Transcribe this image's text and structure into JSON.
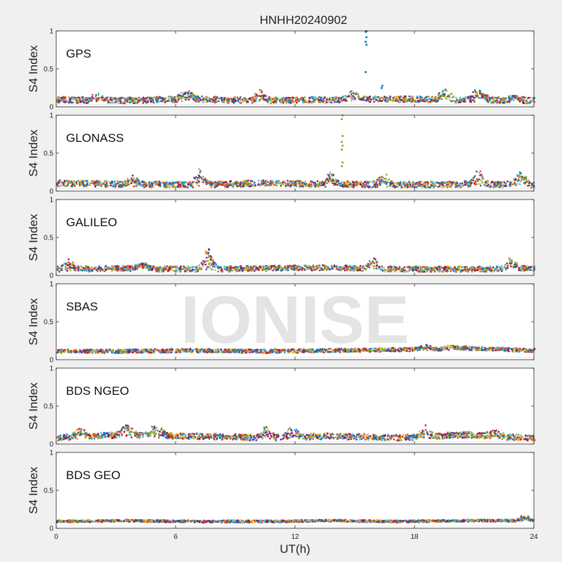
{
  "watermark": "IONISE",
  "chart_data": {
    "type": "scatter",
    "title": "HNHH20240902",
    "xlabel": "UT(h)",
    "ylabel": "S4 Index",
    "xlim": [
      0,
      24
    ],
    "ylim": [
      0,
      1
    ],
    "xticks": [
      0,
      6,
      12,
      18,
      24
    ],
    "xtick_labels": [
      "0",
      "6",
      "12",
      "18",
      "24"
    ],
    "yticks": [
      0,
      0.5,
      1
    ],
    "ytick_labels": [
      "0",
      "0.5",
      "1"
    ],
    "grid": false,
    "colors": [
      "#0072BD",
      "#D95319",
      "#EDB120",
      "#7E2F8E",
      "#77AC30",
      "#4DBEEE",
      "#A2142F"
    ],
    "panels": [
      {
        "name": "GPS",
        "baseline": [
          0.09,
          0.08,
          0.1,
          0.08,
          0.09,
          0.1,
          0.09,
          0.08
        ],
        "noise": 0.04,
        "bumps": [
          [
            2.0,
            0.16
          ],
          [
            6.5,
            0.22
          ],
          [
            10.2,
            0.2
          ],
          [
            14.8,
            0.2
          ],
          [
            19.5,
            0.21
          ],
          [
            21.2,
            0.28
          ],
          [
            23.0,
            0.16
          ]
        ],
        "spikes": [
          {
            "x": 15.5,
            "values": [
              0.46,
              0.82,
              0.86,
              0.92,
              0.99,
              1.0
            ],
            "color": "#0072BD"
          },
          {
            "x": 16.3,
            "values": [
              0.25,
              0.28
            ],
            "color": "#0072BD"
          }
        ]
      },
      {
        "name": "GLONASS",
        "baseline": [
          0.1,
          0.09,
          0.08,
          0.1,
          0.09,
          0.08,
          0.09,
          0.08
        ],
        "noise": 0.04,
        "bumps": [
          [
            3.8,
            0.18
          ],
          [
            7.2,
            0.29
          ],
          [
            13.8,
            0.24
          ],
          [
            16.4,
            0.22
          ],
          [
            21.2,
            0.27
          ],
          [
            23.3,
            0.26
          ]
        ],
        "spikes": [
          {
            "x": 14.3,
            "values": [
              0.33,
              0.38,
              0.55,
              0.6,
              0.65,
              0.73,
              0.95,
              1.0
            ],
            "color": "#77AC30"
          }
        ]
      },
      {
        "name": "GALILEO",
        "baseline": [
          0.08,
          0.09,
          0.08,
          0.09,
          0.1,
          0.08,
          0.08,
          0.09
        ],
        "noise": 0.035,
        "bumps": [
          [
            0.6,
            0.2
          ],
          [
            4.3,
            0.16
          ],
          [
            7.6,
            0.34
          ],
          [
            15.9,
            0.22
          ],
          [
            22.8,
            0.22
          ]
        ],
        "spikes": [
          {
            "x": 7.6,
            "values": [
              0.3,
              0.34
            ],
            "color": "#7E2F8E"
          }
        ]
      },
      {
        "name": "SBAS",
        "baseline": [
          0.11,
          0.11,
          0.12,
          0.11,
          0.12,
          0.13,
          0.15,
          0.12
        ],
        "noise": 0.025,
        "bumps": [
          [
            18.5,
            0.19
          ],
          [
            19.8,
            0.18
          ]
        ],
        "spikes": []
      },
      {
        "name": "BDS NGEO",
        "baseline": [
          0.08,
          0.12,
          0.1,
          0.08,
          0.1,
          0.08,
          0.12,
          0.07
        ],
        "noise": 0.04,
        "bumps": [
          [
            1.2,
            0.2
          ],
          [
            3.5,
            0.29
          ],
          [
            5.0,
            0.27
          ],
          [
            10.5,
            0.22
          ],
          [
            11.8,
            0.24
          ],
          [
            18.5,
            0.22
          ],
          [
            22.0,
            0.18
          ]
        ],
        "spikes": []
      },
      {
        "name": "BDS GEO",
        "baseline": [
          0.09,
          0.1,
          0.09,
          0.09,
          0.1,
          0.09,
          0.1,
          0.1
        ],
        "noise": 0.015,
        "bumps": [
          [
            23.5,
            0.17
          ]
        ],
        "spikes": []
      }
    ]
  }
}
